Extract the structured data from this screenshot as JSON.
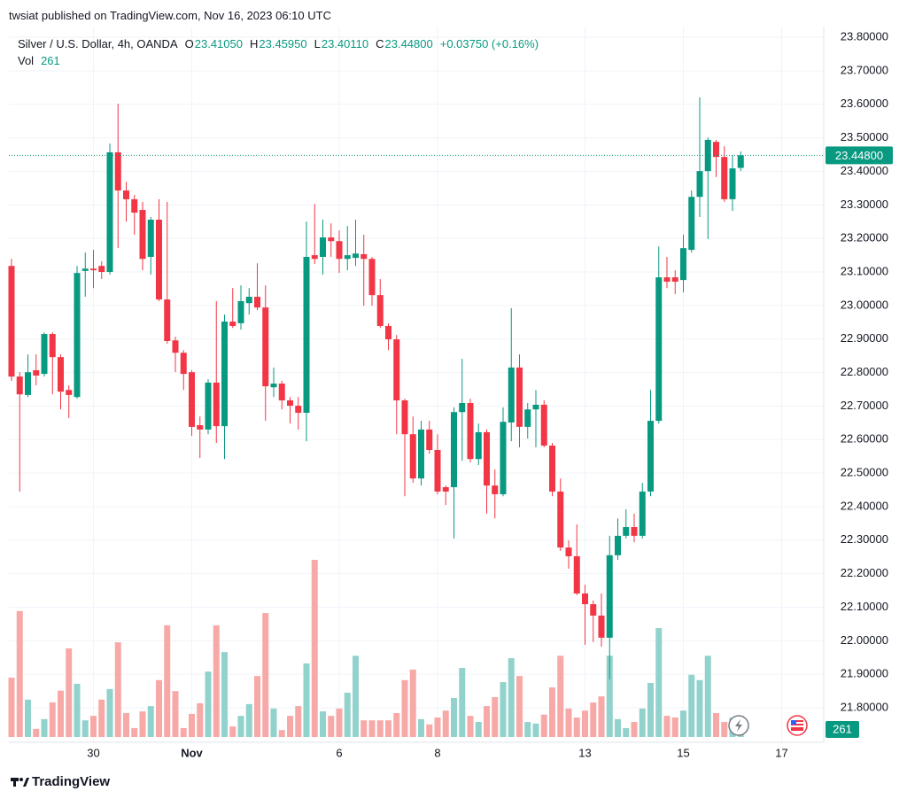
{
  "header": "twsiat published on TradingView.com, Nov 16, 2023 06:10 UTC",
  "footer": "TradingView",
  "chart_data": {
    "type": "candlestick",
    "legend": {
      "symbol": "Silver / U.S. Dollar, 4h, OANDA",
      "fields": [
        {
          "key": "O",
          "value": "23.41050"
        },
        {
          "key": "H",
          "value": "23.45950"
        },
        {
          "key": "L",
          "value": "23.40110"
        },
        {
          "key": "C",
          "value": "23.44800"
        }
      ],
      "change": "+0.03750 (+0.16%)",
      "volume_key": "Vol"
    },
    "categories": [
      null,
      null,
      null,
      null,
      null,
      null,
      null,
      null,
      null,
      null,
      "30",
      null,
      null,
      null,
      null,
      null,
      null,
      null,
      null,
      null,
      null,
      null,
      "Nov",
      null,
      null,
      null,
      null,
      null,
      null,
      null,
      null,
      null,
      null,
      null,
      null,
      null,
      null,
      null,
      null,
      null,
      "6",
      null,
      null,
      null,
      null,
      null,
      null,
      null,
      null,
      null,
      null,
      null,
      "8",
      null,
      null,
      null,
      null,
      null,
      null,
      null,
      null,
      null,
      null,
      null,
      null,
      null,
      null,
      null,
      null,
      null,
      "13",
      null,
      null,
      null,
      null,
      null,
      null,
      null,
      null,
      null,
      null,
      null,
      "15",
      null,
      null,
      null,
      null,
      null,
      null,
      null,
      null,
      null,
      null,
      null,
      "17",
      null,
      null,
      null,
      null
    ],
    "open": [
      23.118,
      22.788,
      22.733,
      22.807,
      22.796,
      22.915,
      22.846,
      22.748,
      22.727,
      23.103,
      23.11,
      23.118,
      23.1,
      23.457,
      23.343,
      23.317,
      23.285,
      23.145,
      23.256,
      23.018,
      22.896,
      22.859,
      22.801,
      22.643,
      22.63,
      22.77,
      22.64,
      22.952,
      22.947,
      23.007,
      23.026,
      22.994,
      22.756,
      22.767,
      22.717,
      22.701,
      22.68,
      23.15,
      23.145,
      23.203,
      23.192,
      23.139,
      23.142,
      23.153,
      23.139,
      23.031,
      22.939,
      22.899,
      22.717,
      22.616,
      22.484,
      22.63,
      22.569,
      22.458,
      22.458,
      22.682,
      22.709,
      22.542,
      22.622,
      22.463,
      22.437,
      22.651,
      22.815,
      22.638,
      22.69,
      22.704,
      22.582,
      22.445,
      22.278,
      22.252,
      22.141,
      22.109,
      22.075,
      22.009,
      22.255,
      22.313,
      22.339,
      22.313,
      22.445,
      22.656,
      23.084,
      23.084,
      23.076,
      23.166,
      23.324,
      23.401,
      23.488,
      23.443,
      23.317,
      23.4105,
      null,
      null,
      null,
      null,
      null,
      null,
      null,
      null,
      null
    ],
    "high": [
      23.139,
      22.801,
      22.854,
      22.854,
      22.92,
      22.92,
      22.854,
      22.762,
      23.118,
      23.158,
      23.166,
      23.132,
      23.483,
      23.602,
      23.369,
      23.33,
      23.309,
      23.264,
      23.317,
      23.309,
      22.907,
      22.867,
      22.807,
      22.669,
      22.78,
      23.013,
      22.973,
      23.052,
      23.06,
      23.052,
      23.126,
      23.06,
      22.815,
      22.775,
      22.727,
      22.727,
      23.25,
      23.303,
      23.256,
      23.245,
      23.224,
      23.237,
      23.256,
      23.211,
      23.145,
      23.079,
      22.947,
      22.912,
      22.722,
      22.669,
      22.656,
      22.656,
      22.616,
      22.463,
      22.696,
      22.841,
      22.722,
      22.648,
      22.63,
      22.511,
      22.696,
      22.992,
      22.854,
      22.709,
      22.748,
      22.717,
      22.59,
      22.484,
      22.299,
      22.347,
      22.167,
      22.12,
      22.141,
      22.313,
      22.365,
      22.392,
      22.379,
      22.471,
      22.748,
      23.176,
      23.145,
      23.105,
      23.211,
      23.343,
      23.621,
      23.501,
      23.494,
      23.475,
      23.449,
      23.4595,
      null,
      null,
      null,
      null,
      null,
      null,
      null,
      null,
      null
    ],
    "low": [
      22.775,
      22.445,
      22.727,
      22.762,
      22.788,
      22.735,
      22.69,
      22.664,
      22.722,
      23.026,
      23.052,
      23.079,
      23.092,
      23.171,
      23.25,
      23.211,
      23.105,
      23.092,
      23.013,
      22.886,
      22.801,
      22.748,
      22.611,
      22.545,
      22.616,
      22.59,
      22.542,
      22.933,
      22.928,
      22.973,
      22.986,
      22.656,
      22.727,
      22.69,
      22.648,
      22.63,
      22.595,
      23.124,
      23.092,
      23.145,
      23.097,
      23.105,
      23.118,
      22.999,
      22.999,
      22.933,
      22.867,
      22.616,
      22.431,
      22.471,
      22.463,
      22.558,
      22.437,
      22.405,
      22.305,
      22.537,
      22.532,
      22.524,
      22.379,
      22.365,
      22.431,
      22.595,
      22.577,
      22.603,
      22.577,
      22.577,
      22.431,
      22.268,
      22.215,
      22.136,
      21.988,
      21.996,
      21.982,
      21.885,
      22.241,
      22.305,
      22.294,
      22.305,
      22.431,
      22.648,
      23.052,
      23.034,
      23.039,
      23.158,
      23.264,
      23.198,
      23.383,
      23.309,
      23.282,
      23.4011,
      null,
      null,
      null,
      null,
      null,
      null,
      null,
      null,
      null
    ],
    "close": [
      22.788,
      22.735,
      22.801,
      22.791,
      22.915,
      22.846,
      22.743,
      22.733,
      23.097,
      23.11,
      23.105,
      23.1,
      23.457,
      23.343,
      23.317,
      23.277,
      23.139,
      23.256,
      23.018,
      22.894,
      22.859,
      22.796,
      22.638,
      22.63,
      22.77,
      22.64,
      22.952,
      22.939,
      23.013,
      23.026,
      22.994,
      22.759,
      22.767,
      22.717,
      22.701,
      22.68,
      23.145,
      23.139,
      23.203,
      23.192,
      23.139,
      23.15,
      23.155,
      23.139,
      23.031,
      22.939,
      22.899,
      22.717,
      22.616,
      22.484,
      22.63,
      22.569,
      22.445,
      22.445,
      22.682,
      22.709,
      22.542,
      22.622,
      22.463,
      22.437,
      22.653,
      22.815,
      22.638,
      22.69,
      22.704,
      22.582,
      22.445,
      22.278,
      22.252,
      22.141,
      22.109,
      22.075,
      22.009,
      22.255,
      22.313,
      22.339,
      22.313,
      22.445,
      22.656,
      23.084,
      23.071,
      23.071,
      23.171,
      23.324,
      23.401,
      23.494,
      23.443,
      23.317,
      23.409,
      23.448,
      null,
      null,
      null,
      null,
      null,
      null,
      null,
      null,
      null
    ],
    "volume": [
      730,
      1550,
      460,
      100,
      220,
      425,
      570,
      1090,
      655,
      205,
      260,
      460,
      590,
      1165,
      295,
      110,
      315,
      380,
      700,
      1375,
      565,
      110,
      285,
      415,
      805,
      1375,
      1045,
      130,
      260,
      405,
      750,
      1525,
      350,
      85,
      260,
      380,
      905,
      2180,
      315,
      260,
      350,
      545,
      1000,
      205,
      205,
      205,
      205,
      295,
      700,
      830,
      220,
      155,
      240,
      325,
      480,
      850,
      260,
      185,
      380,
      490,
      675,
      970,
      750,
      185,
      165,
      275,
      610,
      1000,
      350,
      240,
      325,
      425,
      500,
      1000,
      220,
      110,
      185,
      350,
      665,
      1340,
      260,
      240,
      325,
      765,
      700,
      1000,
      295,
      185,
      240,
      261,
      null,
      null,
      null,
      null,
      null,
      null,
      null,
      null,
      null
    ],
    "up_color": "#089981",
    "down_color": "#f23645",
    "volume_up_color": "#92d2cc",
    "volume_down_color": "#f7a9a7",
    "ylim": [
      21.697,
      23.832
    ],
    "yticks": [
      {
        "value": 21.8,
        "label": "21.80000"
      },
      {
        "value": 21.9,
        "label": "21.90000"
      },
      {
        "value": 22.0,
        "label": "22.00000"
      },
      {
        "value": 22.1,
        "label": "22.10000"
      },
      {
        "value": 22.2,
        "label": "22.20000"
      },
      {
        "value": 22.3,
        "label": "22.30000"
      },
      {
        "value": 22.4,
        "label": "22.40000"
      },
      {
        "value": 22.5,
        "label": "22.50000"
      },
      {
        "value": 22.6,
        "label": "22.60000"
      },
      {
        "value": 22.7,
        "label": "22.70000"
      },
      {
        "value": 22.8,
        "label": "22.80000"
      },
      {
        "value": 22.9,
        "label": "22.90000"
      },
      {
        "value": 23.0,
        "label": "23.00000"
      },
      {
        "value": 23.1,
        "label": "23.10000"
      },
      {
        "value": 23.2,
        "label": "23.20000"
      },
      {
        "value": 23.3,
        "label": "23.30000"
      },
      {
        "value": 23.4,
        "label": "23.40000"
      },
      {
        "value": 23.5,
        "label": "23.50000"
      },
      {
        "value": 23.6,
        "label": "23.60000"
      },
      {
        "value": 23.7,
        "label": "23.70000"
      },
      {
        "value": 23.8,
        "label": "23.80000"
      }
    ],
    "grid": true
  }
}
